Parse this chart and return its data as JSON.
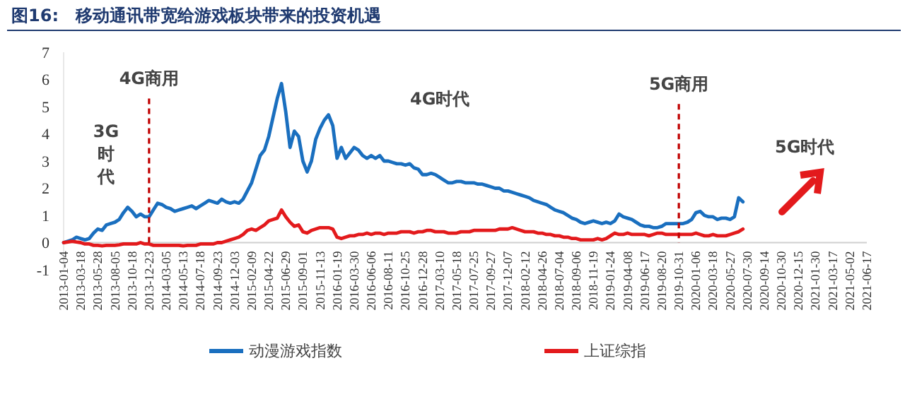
{
  "chart_data": {
    "type": "line",
    "title": "图16:　移动通讯带宽给游戏板块带来的投资机遇",
    "categories": [
      "2013-01-04",
      null,
      null,
      null,
      "2013-03-18",
      null,
      null,
      null,
      "2013-05-28",
      null,
      null,
      null,
      "2013-08-05",
      null,
      null,
      null,
      "2013-10-18",
      null,
      null,
      null,
      "2013-12-23",
      null,
      null,
      null,
      "2014-03-05",
      null,
      null,
      null,
      "2014-05-13",
      null,
      null,
      null,
      "2014-07-18",
      null,
      null,
      null,
      "2014-09-23",
      null,
      null,
      null,
      "2014-12-03",
      null,
      null,
      null,
      "2015-02-09",
      null,
      null,
      null,
      "2015-04-22",
      null,
      null,
      null,
      "2015-06-29",
      null,
      null,
      null,
      "2015-09-01",
      null,
      null,
      null,
      "2015-11-13",
      null,
      null,
      null,
      "2016-01-19",
      null,
      null,
      null,
      "2016-03-30",
      null,
      null,
      null,
      "2016-06-06",
      null,
      null,
      null,
      "2016-08-11",
      null,
      null,
      null,
      "2016-10-25",
      null,
      null,
      null,
      "2016-12-28",
      null,
      null,
      null,
      "2017-03-10",
      null,
      null,
      null,
      "2017-05-18",
      null,
      null,
      null,
      "2017-07-25",
      null,
      null,
      null,
      "2017-09-27",
      null,
      null,
      null,
      "2017-12-07",
      null,
      null,
      null,
      "2018-02-12",
      null,
      null,
      null,
      "2018-04-26",
      null,
      null,
      null,
      "2018-07-04",
      null,
      null,
      null,
      "2018-09-06",
      null,
      null,
      null,
      "2018-11-19",
      null,
      null,
      null,
      "2019-01-24",
      null,
      null,
      null,
      "2019-04-08",
      null,
      null,
      null,
      "2019-06-17",
      null,
      null,
      null,
      "2019-08-20",
      null,
      null,
      null,
      "2019-10-31",
      null,
      null,
      null,
      "2020-01-06",
      null,
      null,
      null,
      "2020-03-18",
      null,
      null,
      null,
      "2020-05-27",
      null,
      null,
      null,
      "2020-07-30",
      null,
      null,
      null,
      "2020-09-14",
      null,
      null,
      null,
      "2020-10-30",
      null,
      null,
      null,
      "2020-12-15",
      null,
      null,
      null,
      "2021-01-30",
      null,
      null,
      null,
      "2021-03-17",
      null,
      null,
      null,
      "2021-05-02",
      null,
      null,
      null,
      "2021-06-17"
    ],
    "series": [
      {
        "name": "动漫游戏指数",
        "color": "#1a6fbf",
        "values": [
          0,
          0.05,
          0.1,
          0.2,
          0.15,
          0.1,
          0.15,
          0.35,
          0.5,
          0.45,
          0.65,
          0.7,
          0.75,
          0.85,
          1.1,
          1.3,
          1.15,
          0.95,
          1.05,
          0.95,
          0.95,
          1.2,
          1.45,
          1.4,
          1.3,
          1.25,
          1.15,
          1.2,
          1.25,
          1.3,
          1.35,
          1.25,
          1.35,
          1.45,
          1.55,
          1.5,
          1.45,
          1.6,
          1.5,
          1.45,
          1.5,
          1.45,
          1.6,
          1.9,
          2.2,
          2.7,
          3.2,
          3.4,
          3.9,
          4.6,
          5.3,
          5.85,
          4.8,
          3.5,
          4.1,
          3.9,
          3.0,
          2.6,
          3.0,
          3.8,
          4.2,
          4.5,
          4.7,
          4.3,
          3.1,
          3.5,
          3.1,
          3.3,
          3.5,
          3.4,
          3.2,
          3.1,
          3.2,
          3.1,
          3.2,
          3.0,
          3.0,
          2.95,
          2.9,
          2.9,
          2.85,
          2.9,
          2.75,
          2.7,
          2.5,
          2.5,
          2.55,
          2.5,
          2.4,
          2.3,
          2.2,
          2.2,
          2.25,
          2.25,
          2.2,
          2.2,
          2.2,
          2.15,
          2.15,
          2.1,
          2.05,
          2.0,
          2.0,
          1.9,
          1.9,
          1.85,
          1.8,
          1.75,
          1.7,
          1.65,
          1.55,
          1.5,
          1.45,
          1.4,
          1.3,
          1.2,
          1.15,
          1.1,
          1.0,
          0.9,
          0.85,
          0.75,
          0.7,
          0.75,
          0.8,
          0.75,
          0.7,
          0.75,
          0.7,
          0.8,
          1.05,
          0.95,
          0.9,
          0.85,
          0.75,
          0.65,
          0.6,
          0.6,
          0.55,
          0.55,
          0.6,
          0.7,
          0.7,
          0.7,
          0.7,
          0.7,
          0.75,
          0.85,
          1.1,
          1.15,
          1.0,
          0.95,
          0.95,
          0.85,
          0.9,
          0.9,
          0.85,
          0.95,
          1.65,
          1.5,
          null,
          null,
          null,
          null,
          null,
          null,
          null,
          null,
          null,
          null,
          null,
          null,
          null,
          null,
          null,
          null,
          null,
          null,
          null,
          null,
          null,
          null,
          null,
          null,
          null,
          null,
          null,
          null,
          null
        ]
      },
      {
        "name": "上证综指",
        "color": "#e31a1c",
        "values": [
          0,
          0.02,
          0.05,
          0.02,
          0,
          -0.05,
          -0.05,
          -0.1,
          -0.1,
          -0.12,
          -0.1,
          -0.1,
          -0.1,
          -0.08,
          -0.05,
          -0.05,
          -0.05,
          -0.05,
          0,
          -0.05,
          -0.05,
          -0.1,
          -0.1,
          -0.1,
          -0.1,
          -0.1,
          -0.1,
          -0.1,
          -0.12,
          -0.1,
          -0.1,
          -0.1,
          -0.05,
          -0.05,
          -0.05,
          -0.05,
          0,
          0,
          0.05,
          0.1,
          0.15,
          0.2,
          0.3,
          0.45,
          0.5,
          0.45,
          0.55,
          0.65,
          0.8,
          0.85,
          0.9,
          1.2,
          0.95,
          0.75,
          0.6,
          0.65,
          0.4,
          0.35,
          0.45,
          0.5,
          0.55,
          0.55,
          0.55,
          0.5,
          0.2,
          0.15,
          0.2,
          0.25,
          0.25,
          0.3,
          0.3,
          0.35,
          0.3,
          0.35,
          0.35,
          0.3,
          0.35,
          0.35,
          0.35,
          0.4,
          0.4,
          0.4,
          0.35,
          0.4,
          0.4,
          0.45,
          0.45,
          0.4,
          0.4,
          0.4,
          0.35,
          0.35,
          0.35,
          0.4,
          0.4,
          0.4,
          0.45,
          0.45,
          0.45,
          0.45,
          0.45,
          0.45,
          0.5,
          0.5,
          0.5,
          0.55,
          0.5,
          0.45,
          0.4,
          0.4,
          0.4,
          0.35,
          0.35,
          0.3,
          0.3,
          0.25,
          0.25,
          0.2,
          0.2,
          0.15,
          0.15,
          0.1,
          0.1,
          0.1,
          0.1,
          0.15,
          0.1,
          0.15,
          0.25,
          0.35,
          0.3,
          0.3,
          0.35,
          0.3,
          0.3,
          0.3,
          0.3,
          0.25,
          0.3,
          0.35,
          0.35,
          0.3,
          0.3,
          0.3,
          0.3,
          0.3,
          0.3,
          0.3,
          0.35,
          0.3,
          0.25,
          0.25,
          0.3,
          0.25,
          0.25,
          0.25,
          0.3,
          0.35,
          0.4,
          0.5,
          null,
          null,
          null,
          null,
          null,
          null,
          null,
          null,
          null,
          null,
          null,
          null,
          null,
          null,
          null,
          null,
          null,
          null,
          null,
          null,
          null,
          null,
          null,
          null,
          null,
          null,
          null,
          null,
          null
        ]
      }
    ],
    "ylim": [
      -1,
      7
    ],
    "yticks": [
      -1,
      0,
      1,
      2,
      3,
      4,
      5,
      6,
      7
    ],
    "ref_lines": [
      {
        "axis": "x",
        "value": "2013-12-23",
        "label": "4G商用",
        "color": "#c00000",
        "line_style": "dashed"
      },
      {
        "axis": "x",
        "value": "2019-10-31",
        "label": "5G商用",
        "color": "#c00000",
        "line_style": "dashed"
      }
    ],
    "annotations": [
      "3G时代",
      "4G时代",
      "5G时代"
    ],
    "legend": "bottom",
    "grid": false,
    "marker": "none",
    "line_style": "solid"
  }
}
